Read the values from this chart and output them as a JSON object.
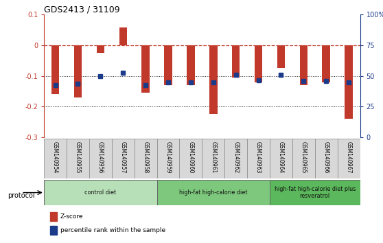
{
  "title": "GDS2413 / 31109",
  "samples": [
    "GSM140954",
    "GSM140955",
    "GSM140956",
    "GSM140957",
    "GSM140958",
    "GSM140959",
    "GSM140960",
    "GSM140961",
    "GSM140962",
    "GSM140963",
    "GSM140964",
    "GSM140965",
    "GSM140966",
    "GSM140967"
  ],
  "zscore": [
    -0.16,
    -0.17,
    -0.025,
    0.058,
    -0.155,
    -0.13,
    -0.13,
    -0.225,
    -0.105,
    -0.12,
    -0.075,
    -0.13,
    -0.12,
    -0.24
  ],
  "percentile_left": [
    -0.13,
    -0.125,
    -0.1,
    -0.09,
    -0.13,
    -0.12,
    -0.12,
    -0.12,
    -0.097,
    -0.115,
    -0.097,
    -0.117,
    -0.117,
    -0.122
  ],
  "bar_color": "#c0392b",
  "dot_color": "#1a3a8a",
  "dashed_line_color": "#c0392b",
  "dotted_line_color": "#222222",
  "ylim_left": [
    -0.3,
    0.1
  ],
  "ylim_right": [
    0,
    100
  ],
  "yticks_left": [
    -0.3,
    -0.2,
    -0.1,
    0.0,
    0.1
  ],
  "ytick_labels_left": [
    "-0.3",
    "-0.2",
    "-0.1",
    "0",
    "0.1"
  ],
  "yticks_right": [
    0,
    25,
    50,
    75,
    100
  ],
  "ytick_labels_right": [
    "0",
    "25",
    "50",
    "75",
    "100%"
  ],
  "groups": [
    {
      "label": "control diet",
      "start": 0,
      "end": 4,
      "color": "#b8e0b8"
    },
    {
      "label": "high-fat high-calorie diet",
      "start": 5,
      "end": 9,
      "color": "#7dc87d"
    },
    {
      "label": "high-fat high-calorie diet plus\nresveratrol",
      "start": 10,
      "end": 13,
      "color": "#5cb85c"
    }
  ],
  "protocol_label": "protocol",
  "legend": [
    {
      "color": "#c0392b",
      "label": "Z-score"
    },
    {
      "color": "#1a3a8a",
      "label": "percentile rank within the sample"
    }
  ],
  "bar_width": 0.35,
  "dot_size": 4.5,
  "label_box_color": "#d8d8d8",
  "label_box_edge": "#888888"
}
